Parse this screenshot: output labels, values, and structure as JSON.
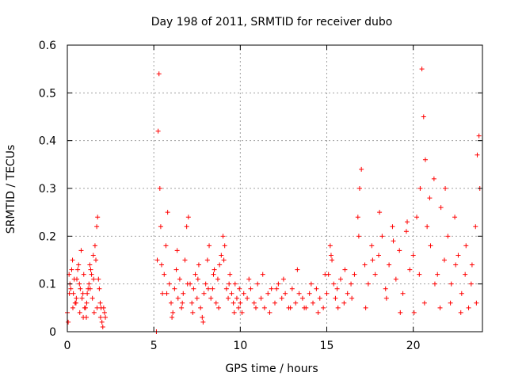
{
  "chart_data": {
    "type": "scatter",
    "title": "Day 198 of 2011, SRMTID for receiver dubo",
    "xlabel": "GPS time / hours",
    "ylabel": "SRMTID / TECUs",
    "xlim": [
      0,
      24
    ],
    "ylim": [
      0,
      0.6
    ],
    "xticks": [
      0,
      5,
      10,
      15,
      20
    ],
    "xtick_labels": [
      "0",
      "5",
      "10",
      "15",
      "20"
    ],
    "yticks": [
      0,
      0.1,
      0.2,
      0.3,
      0.4,
      0.5,
      0.6
    ],
    "ytick_labels": [
      "0",
      "0.1",
      "0.2",
      "0.3",
      "0.4",
      "0.5",
      "0.6"
    ],
    "grid": true,
    "marker": "+",
    "series": [
      {
        "name": "SRMTID",
        "color": "#ff0000",
        "x": [
          0.0,
          0.1,
          0.2,
          0.3,
          0.4,
          0.5,
          0.6,
          0.7,
          0.8,
          0.9,
          1.0,
          1.1,
          1.2,
          1.3,
          1.4,
          1.5,
          1.6,
          1.7,
          1.8,
          1.9,
          2.0,
          2.1,
          2.2,
          0.05,
          0.15,
          0.25,
          0.35,
          0.45,
          0.55,
          0.65,
          0.75,
          0.85,
          0.95,
          1.05,
          1.15,
          1.25,
          1.35,
          1.45,
          1.55,
          1.65,
          1.75,
          1.85,
          1.95,
          2.05,
          2.15,
          5.2,
          5.25,
          5.3,
          5.35,
          5.4,
          5.5,
          5.6,
          5.7,
          5.8,
          5.9,
          6.0,
          6.1,
          6.2,
          6.3,
          6.4,
          6.5,
          6.6,
          6.7,
          6.8,
          6.9,
          7.0,
          7.1,
          7.2,
          7.3,
          7.4,
          7.5,
          7.6,
          7.7,
          7.8,
          7.9,
          8.0,
          8.1,
          8.2,
          8.3,
          8.4,
          8.5,
          8.6,
          8.7,
          8.8,
          8.9,
          9.0,
          9.1,
          9.2,
          9.3,
          9.4,
          9.5,
          9.6,
          9.7,
          9.8,
          9.9,
          10.0,
          10.2,
          10.4,
          10.6,
          10.8,
          11.0,
          11.2,
          11.4,
          11.6,
          11.8,
          12.0,
          12.2,
          12.4,
          12.6,
          12.8,
          13.0,
          13.2,
          13.4,
          13.6,
          13.8,
          14.0,
          14.2,
          14.4,
          14.6,
          14.8,
          15.0,
          15.1,
          15.2,
          15.3,
          15.4,
          15.5,
          15.6,
          15.8,
          16.0,
          16.2,
          16.4,
          16.6,
          16.8,
          16.9,
          17.0,
          17.2,
          17.4,
          17.6,
          17.8,
          18.0,
          18.2,
          18.4,
          18.6,
          18.8,
          19.0,
          19.2,
          19.4,
          19.6,
          19.8,
          20.0,
          20.2,
          20.4,
          20.5,
          20.6,
          20.7,
          20.8,
          21.0,
          21.2,
          21.4,
          21.6,
          21.8,
          22.0,
          22.2,
          22.4,
          22.6,
          22.8,
          23.0,
          23.2,
          23.4,
          23.6,
          23.7,
          23.8,
          0.12,
          0.32,
          0.52,
          0.72,
          0.92,
          1.12,
          1.32,
          1.52,
          1.72,
          1.92,
          5.15,
          5.45,
          5.75,
          6.05,
          6.35,
          6.65,
          6.95,
          7.25,
          7.55,
          7.85,
          8.15,
          8.45,
          8.75,
          9.05,
          9.35,
          9.65,
          9.95,
          10.1,
          10.5,
          10.9,
          11.3,
          11.7,
          12.1,
          12.5,
          12.9,
          13.3,
          13.7,
          14.1,
          14.5,
          14.9,
          15.25,
          15.65,
          16.05,
          16.45,
          16.85,
          17.25,
          17.65,
          18.05,
          18.45,
          18.85,
          19.25,
          19.65,
          20.05,
          20.35,
          20.65,
          20.95,
          21.25,
          21.55,
          21.85,
          22.15,
          22.45,
          22.75,
          23.05,
          23.35,
          23.65,
          23.85
        ],
        "y": [
          0.04,
          0.12,
          0.09,
          0.15,
          0.11,
          0.06,
          0.13,
          0.1,
          0.17,
          0.08,
          0.05,
          0.03,
          0.09,
          0.14,
          0.12,
          0.16,
          0.18,
          0.22,
          0.11,
          0.06,
          0.02,
          0.05,
          0.03,
          0.02,
          0.1,
          0.13,
          0.08,
          0.06,
          0.11,
          0.14,
          0.09,
          0.07,
          0.12,
          0.05,
          0.08,
          0.1,
          0.13,
          0.07,
          0.04,
          0.15,
          0.24,
          0.09,
          0.05,
          0.01,
          0.04,
          0.15,
          0.42,
          0.54,
          0.3,
          0.22,
          0.08,
          0.12,
          0.18,
          0.25,
          0.1,
          0.06,
          0.04,
          0.09,
          0.13,
          0.07,
          0.11,
          0.05,
          0.08,
          0.15,
          0.22,
          0.24,
          0.1,
          0.06,
          0.09,
          0.12,
          0.07,
          0.14,
          0.05,
          0.03,
          0.08,
          0.1,
          0.15,
          0.18,
          0.07,
          0.09,
          0.13,
          0.06,
          0.11,
          0.14,
          0.16,
          0.2,
          0.18,
          0.09,
          0.07,
          0.12,
          0.08,
          0.06,
          0.1,
          0.07,
          0.05,
          0.06,
          0.08,
          0.07,
          0.09,
          0.06,
          0.1,
          0.07,
          0.05,
          0.08,
          0.09,
          0.06,
          0.1,
          0.07,
          0.08,
          0.05,
          0.09,
          0.06,
          0.08,
          0.07,
          0.05,
          0.08,
          0.06,
          0.09,
          0.07,
          0.05,
          0.08,
          0.12,
          0.18,
          0.15,
          0.1,
          0.07,
          0.09,
          0.11,
          0.06,
          0.08,
          0.1,
          0.12,
          0.24,
          0.3,
          0.34,
          0.14,
          0.1,
          0.18,
          0.12,
          0.16,
          0.2,
          0.09,
          0.14,
          0.22,
          0.11,
          0.17,
          0.08,
          0.21,
          0.13,
          0.16,
          0.24,
          0.3,
          0.55,
          0.45,
          0.36,
          0.22,
          0.18,
          0.32,
          0.12,
          0.26,
          0.15,
          0.2,
          0.1,
          0.24,
          0.16,
          0.08,
          0.12,
          0.05,
          0.14,
          0.22,
          0.37,
          0.41,
          0.08,
          0.05,
          0.07,
          0.04,
          0.03,
          0.06,
          0.09,
          0.11,
          0.05,
          0.03,
          0.0,
          0.14,
          0.08,
          0.03,
          0.17,
          0.06,
          0.1,
          0.04,
          0.11,
          0.02,
          0.09,
          0.12,
          0.05,
          0.15,
          0.1,
          0.04,
          0.09,
          0.04,
          0.11,
          0.05,
          0.12,
          0.04,
          0.09,
          0.11,
          0.05,
          0.13,
          0.05,
          0.1,
          0.04,
          0.12,
          0.16,
          0.05,
          0.13,
          0.07,
          0.2,
          0.05,
          0.15,
          0.25,
          0.07,
          0.19,
          0.04,
          0.23,
          0.04,
          0.12,
          0.06,
          0.28,
          0.1,
          0.05,
          0.3,
          0.06,
          0.14,
          0.04,
          0.18,
          0.1,
          0.06,
          0.3
        ]
      }
    ]
  }
}
